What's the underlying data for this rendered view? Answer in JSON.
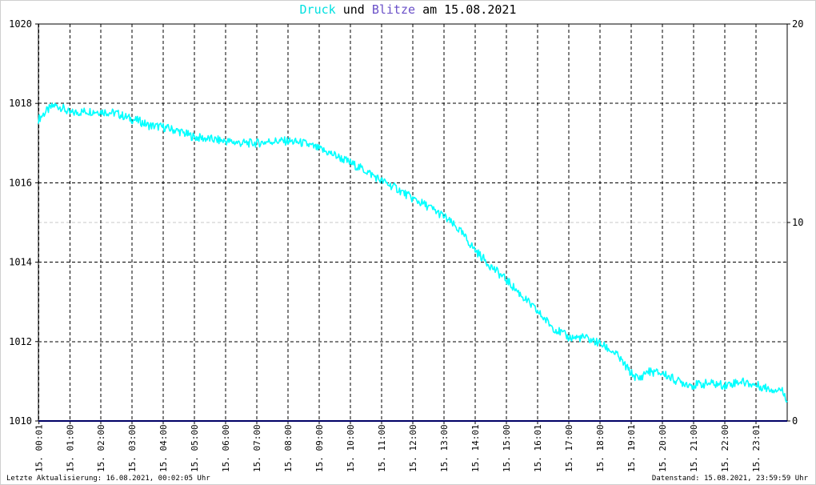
{
  "chart_data": {
    "type": "line",
    "title_parts": [
      "Druck",
      "und",
      "Blitze",
      "am 15.08.2021"
    ],
    "y_left": {
      "min": 1010,
      "max": 1020,
      "ticks": [
        1010,
        1012,
        1014,
        1016,
        1018,
        1020
      ]
    },
    "y_right": {
      "min": 0,
      "max": 20,
      "ticks": [
        0,
        10,
        20
      ]
    },
    "x_range_hours": [
      0,
      24
    ],
    "x_ticks": [
      {
        "hour": 0.0167,
        "label": "15. 00:01"
      },
      {
        "hour": 1.0167,
        "label": "15. 01:00"
      },
      {
        "hour": 2.0,
        "label": "15. 02:00"
      },
      {
        "hour": 3.0,
        "label": "15. 03:00"
      },
      {
        "hour": 4.0,
        "label": "15. 04:00"
      },
      {
        "hour": 5.0,
        "label": "15. 05:00"
      },
      {
        "hour": 6.0,
        "label": "15. 06:00"
      },
      {
        "hour": 7.0,
        "label": "15. 07:00"
      },
      {
        "hour": 8.0,
        "label": "15. 08:00"
      },
      {
        "hour": 9.0,
        "label": "15. 09:00"
      },
      {
        "hour": 10.0,
        "label": "15. 10:00"
      },
      {
        "hour": 11.0,
        "label": "15. 11:00"
      },
      {
        "hour": 12.0,
        "label": "15. 12:00"
      },
      {
        "hour": 13.0,
        "label": "15. 13:00"
      },
      {
        "hour": 14.0,
        "label": "15. 14:01"
      },
      {
        "hour": 15.0,
        "label": "15. 15:00"
      },
      {
        "hour": 16.0,
        "label": "15. 16:01"
      },
      {
        "hour": 17.0,
        "label": "15. 17:00"
      },
      {
        "hour": 18.0,
        "label": "15. 18:00"
      },
      {
        "hour": 19.0,
        "label": "15. 19:01"
      },
      {
        "hour": 20.0,
        "label": "15. 20:00"
      },
      {
        "hour": 21.0,
        "label": "15. 21:00"
      },
      {
        "hour": 22.0,
        "label": "15. 22:00"
      },
      {
        "hour": 23.0,
        "label": "15. 23:01"
      }
    ],
    "series": [
      {
        "name": "Druck",
        "axis": "left",
        "color": "#00ffff",
        "points": [
          [
            0.0,
            1017.6
          ],
          [
            0.25,
            1017.8
          ],
          [
            0.5,
            1017.95
          ],
          [
            0.75,
            1017.9
          ],
          [
            1.0,
            1017.75
          ],
          [
            1.5,
            1017.8
          ],
          [
            2.0,
            1017.8
          ],
          [
            2.5,
            1017.75
          ],
          [
            3.0,
            1017.6
          ],
          [
            3.25,
            1017.55
          ],
          [
            3.5,
            1017.45
          ],
          [
            4.0,
            1017.4
          ],
          [
            4.5,
            1017.3
          ],
          [
            5.0,
            1017.15
          ],
          [
            5.5,
            1017.1
          ],
          [
            6.0,
            1017.05
          ],
          [
            6.5,
            1017.0
          ],
          [
            7.0,
            1017.0
          ],
          [
            7.5,
            1017.05
          ],
          [
            8.0,
            1017.05
          ],
          [
            8.5,
            1017.0
          ],
          [
            9.0,
            1016.85
          ],
          [
            9.5,
            1016.7
          ],
          [
            10.0,
            1016.5
          ],
          [
            10.5,
            1016.3
          ],
          [
            11.0,
            1016.05
          ],
          [
            11.5,
            1015.85
          ],
          [
            12.0,
            1015.6
          ],
          [
            12.5,
            1015.4
          ],
          [
            13.0,
            1015.15
          ],
          [
            13.5,
            1014.8
          ],
          [
            14.0,
            1014.3
          ],
          [
            14.5,
            1013.9
          ],
          [
            15.0,
            1013.55
          ],
          [
            15.5,
            1013.15
          ],
          [
            16.0,
            1012.75
          ],
          [
            16.5,
            1012.35
          ],
          [
            17.0,
            1012.1
          ],
          [
            17.5,
            1012.1
          ],
          [
            18.0,
            1011.95
          ],
          [
            18.5,
            1011.7
          ],
          [
            19.0,
            1011.2
          ],
          [
            19.25,
            1011.05
          ],
          [
            19.5,
            1011.25
          ],
          [
            20.0,
            1011.2
          ],
          [
            20.5,
            1011.0
          ],
          [
            21.0,
            1010.9
          ],
          [
            21.5,
            1010.95
          ],
          [
            22.0,
            1010.9
          ],
          [
            22.5,
            1011.0
          ],
          [
            23.0,
            1010.9
          ],
          [
            23.5,
            1010.8
          ],
          [
            23.8,
            1010.8
          ],
          [
            24.0,
            1010.55
          ]
        ]
      },
      {
        "name": "Blitze",
        "axis": "right",
        "color": "#000066",
        "points": [
          [
            0.0,
            0
          ],
          [
            24.0,
            0
          ]
        ]
      }
    ]
  },
  "footer": {
    "left": "Letzte Aktualisierung: 16.08.2021, 00:02:05 Uhr",
    "right": "Datenstand: 15.08.2021, 23:59:59 Uhr"
  }
}
